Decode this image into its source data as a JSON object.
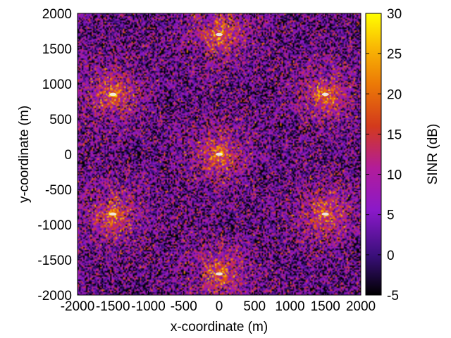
{
  "chart_data": {
    "type": "heatmap",
    "title": "",
    "xlabel": "x-coordinate (m)",
    "ylabel": "y-coordinate (m)",
    "xlim": [
      -2000,
      2000
    ],
    "ylim": [
      -2000,
      2000
    ],
    "x_ticks": [
      -2000,
      -1500,
      -1000,
      -500,
      0,
      500,
      1000,
      1500,
      2000
    ],
    "y_ticks": [
      -2000,
      -1500,
      -1000,
      -500,
      0,
      500,
      1000,
      1500,
      2000
    ],
    "x_tick_labels": [
      "-2000",
      "-1500",
      "-1000",
      "-500",
      "0",
      "500",
      "1000",
      "1500",
      "2000"
    ],
    "y_tick_labels": [
      "-2000",
      "-1500",
      "-1000",
      "-500",
      "0",
      "500",
      "1000",
      "1500",
      "2000"
    ],
    "colorbar": {
      "label": "SINR (dB)",
      "range": [
        -5,
        30
      ],
      "ticks": [
        -5,
        0,
        5,
        10,
        15,
        20,
        25,
        30
      ],
      "tick_labels": [
        "-5",
        "0",
        "5",
        "10",
        "15",
        "20",
        "25",
        "30"
      ],
      "colormap": "gnuplot palette (black-purple-red-orange-yellow)"
    },
    "base_stations": [
      {
        "x": 0,
        "y": 1700
      },
      {
        "x": -1500,
        "y": 850
      },
      {
        "x": 1500,
        "y": 850
      },
      {
        "x": 0,
        "y": 0
      },
      {
        "x": -1500,
        "y": -850
      },
      {
        "x": 1500,
        "y": -850
      },
      {
        "x": 0,
        "y": -1700
      }
    ],
    "grid": false,
    "legend": "none"
  }
}
